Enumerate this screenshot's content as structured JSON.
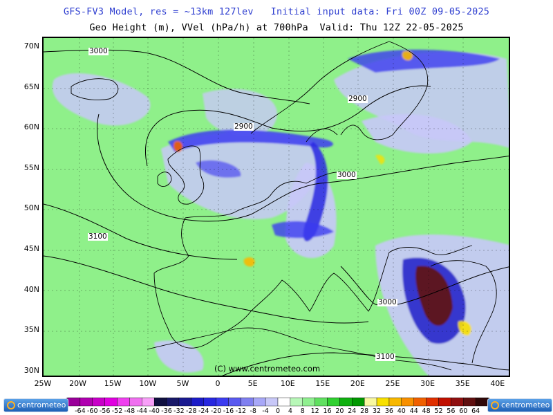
{
  "header": {
    "line1": "GFS-FV3 Model, res = ~13km 127lev   Initial input data: Fri 00Z 09-05-2025",
    "line2": "Geo Height (m), VVel (hPa/h) at 700hPa  Valid: Thu 12Z 22-05-2025"
  },
  "map": {
    "latitude_labels": [
      "70N",
      "65N",
      "60N",
      "55N",
      "50N",
      "45N",
      "40N",
      "35N",
      "30N"
    ],
    "longitude_labels": [
      "25W",
      "20W",
      "15W",
      "10W",
      "5W",
      "0",
      "5E",
      "10E",
      "15E",
      "20E",
      "25E",
      "30E",
      "35E",
      "40E"
    ],
    "contour_labels": [
      "3000",
      "2900",
      "2900",
      "3000",
      "3100",
      "3000",
      "3100"
    ],
    "copyright": "(C) www.centrometeo.com",
    "colors": {
      "base": "#8ff08a",
      "ascent_light": "#c8c8f8",
      "ascent_mid": "#5a5af0",
      "ascent_strong": "#1c1cc8",
      "subsidence": "#ffd040",
      "extreme": "#6a0a0a"
    }
  },
  "legend": {
    "logo_text": "centrometeo",
    "values": [
      "-64",
      "-60",
      "-56",
      "-52",
      "-48",
      "-44",
      "-40",
      "-36",
      "-32",
      "-28",
      "-24",
      "-20",
      "-16",
      "-12",
      "-8",
      "-4",
      "0",
      "4",
      "8",
      "12",
      "16",
      "20",
      "24",
      "28",
      "32",
      "36",
      "40",
      "44",
      "48",
      "52",
      "56",
      "60",
      "64"
    ],
    "colors": [
      "#9a009a",
      "#b000b0",
      "#c800c8",
      "#e000e0",
      "#f040f0",
      "#f070f0",
      "#f8a0f8",
      "#101040",
      "#181868",
      "#1a1a90",
      "#1c1cc8",
      "#2828e0",
      "#3c3cf0",
      "#5a5af0",
      "#8080f0",
      "#a8a8f8",
      "#c8c8f8",
      "#ffffff",
      "#b8f8b8",
      "#90f090",
      "#60e060",
      "#30d030",
      "#10b010",
      "#009800",
      "#f8f8a0",
      "#f8e000",
      "#f8b800",
      "#f89000",
      "#f06000",
      "#e03000",
      "#c01000",
      "#901010",
      "#601010",
      "#300808"
    ]
  }
}
